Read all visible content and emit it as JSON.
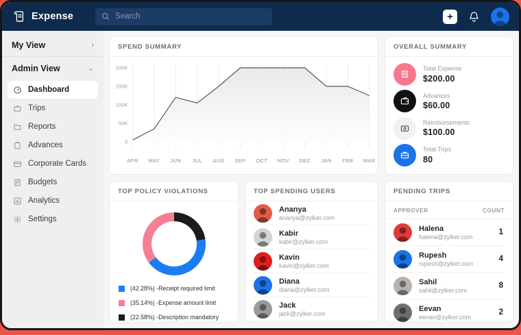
{
  "topbar": {
    "app_name": "Expense",
    "search_placeholder": "Search",
    "add_glyph": "+",
    "colors": {
      "bar": "#0e2b4d",
      "search_bg": "#1d3c64",
      "avatar_bg": "#1a73e8"
    }
  },
  "sidebar": {
    "sections": [
      {
        "label": "My View",
        "chevron": "›"
      },
      {
        "label": "Admin View",
        "chevron": "⌄"
      }
    ],
    "items": [
      {
        "label": "Dashboard",
        "icon": "dashboard-icon",
        "active": true
      },
      {
        "label": "Trips",
        "icon": "trips-icon",
        "active": false
      },
      {
        "label": "Reports",
        "icon": "reports-icon",
        "active": false
      },
      {
        "label": "Advances",
        "icon": "advances-icon",
        "active": false
      },
      {
        "label": "Corporate Cards",
        "icon": "corporate-cards-icon",
        "active": false
      },
      {
        "label": "Budgets",
        "icon": "budgets-icon",
        "active": false
      },
      {
        "label": "Analytics",
        "icon": "analytics-icon",
        "active": false
      },
      {
        "label": "Settings",
        "icon": "settings-icon",
        "active": false
      }
    ]
  },
  "panels": {
    "spend_summary": {
      "title": "SPEND SUMMARY"
    },
    "overall_summary": {
      "title": "OVERALL SUMMARY",
      "items": [
        {
          "label": "Total Expense",
          "value": "$200.00",
          "icon": "receipt-icon",
          "circle_color": "#f8778c",
          "icon_color": "#ffffff"
        },
        {
          "label": "Advances",
          "value": "$60.00",
          "icon": "wallet-icon",
          "circle_color": "#111111",
          "icon_color": "#ffffff"
        },
        {
          "label": "Reimbursements",
          "value": "$100.00",
          "icon": "cash-icon",
          "circle_color": "#f1f1f2",
          "icon_color": "#4a4b4d"
        },
        {
          "label": "Total Trips",
          "value": "80",
          "icon": "briefcase-icon",
          "circle_color": "#1a73e8",
          "icon_color": "#ffffff"
        }
      ]
    },
    "top_policy_violations": {
      "title": "TOP POLICY VIOLATIONS"
    },
    "top_spending_users": {
      "title": "TOP SPENDING USERS",
      "users": [
        {
          "name": "Ananya",
          "email": "ananya@zylker.com",
          "avatar_color": "#e25a48"
        },
        {
          "name": "Kabir",
          "email": "kabir@zylker.com",
          "avatar_color": "#d3d3d3"
        },
        {
          "name": "Kavin",
          "email": "kavin@zylker.com",
          "avatar_color": "#e01d1d"
        },
        {
          "name": "Diana",
          "email": "diana@zylker.com",
          "avatar_color": "#1a73e8"
        },
        {
          "name": "Jack",
          "email": "jack@zylker.com",
          "avatar_color": "#9a9a9a"
        }
      ]
    },
    "pending_trips": {
      "title": "PENDING TRIPS",
      "columns": [
        "APPROVER",
        "COUNT"
      ],
      "rows": [
        {
          "name": "Halena",
          "email": "halena@zylker.com",
          "count": "1",
          "avatar_color": "#e03a3a"
        },
        {
          "name": "Rupesh",
          "email": "rupesh@zylker.com",
          "count": "4",
          "avatar_color": "#1a73e8"
        },
        {
          "name": "Sahil",
          "email": "sahil@zylker.com",
          "count": "8",
          "avatar_color": "#b8b2ac"
        },
        {
          "name": "Eevan",
          "email": "eevan@zylker.com",
          "count": "2",
          "avatar_color": "#6f6f6f"
        }
      ]
    }
  },
  "chart_data": [
    {
      "type": "area",
      "title": "SPEND SUMMARY",
      "categories": [
        "APR",
        "MAY",
        "JUN",
        "JUL",
        "AUG",
        "SEP",
        "OCT",
        "NOV",
        "DEC",
        "JAN",
        "FEB",
        "MAR"
      ],
      "values": [
        5000,
        35000,
        120000,
        105000,
        150000,
        200000,
        200000,
        200000,
        200000,
        150000,
        150000,
        125000
      ],
      "xlabel": "",
      "ylabel": "",
      "ylim": [
        0,
        200000
      ],
      "ytick_values": [
        0,
        50000,
        100000,
        150000,
        200000
      ],
      "ytick_labels": [
        "0",
        "50K",
        "100K",
        "150K",
        "200K"
      ],
      "grid": "vertical",
      "line_color": "#55585c",
      "fill_top": "#e9e9ea",
      "fill_bottom": "#fdfdfd"
    },
    {
      "type": "pie",
      "title": "TOP POLICY VIOLATIONS",
      "donut": true,
      "slices": [
        {
          "label": "Description mandatory",
          "pct": 22.58,
          "color": "#1c1c1c"
        },
        {
          "label": "Receipt required limit",
          "pct": 42.28,
          "color": "#1b7df5"
        },
        {
          "label": "Expense amount limit",
          "pct": 35.14,
          "color": "#f57f95"
        }
      ],
      "legend_position": "bottom",
      "legend": [
        {
          "text": "(42.28%) -Receipt required limit",
          "color": "#1b7df5"
        },
        {
          "text": "(35.14%) -Expense amount limit",
          "color": "#f57f95"
        },
        {
          "text": "(22.58%) -Description mandatory",
          "color": "#1c1c1c"
        }
      ]
    }
  ]
}
